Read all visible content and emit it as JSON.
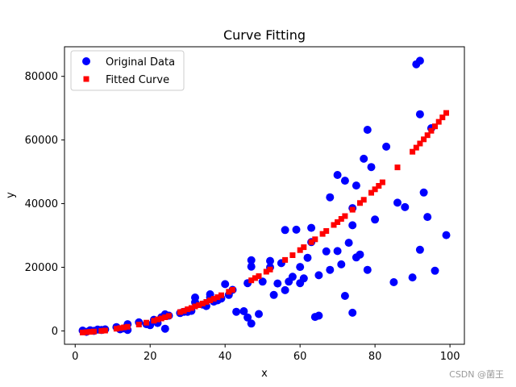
{
  "chart_data": {
    "type": "scatter",
    "title": "Curve Fitting",
    "xlabel": "x",
    "ylabel": "y",
    "xlim": [
      -2.85,
      103.85
    ],
    "ylim": [
      -4200,
      89300
    ],
    "xticks": [
      0,
      20,
      40,
      60,
      80,
      100
    ],
    "yticks": [
      0,
      20000,
      40000,
      60000,
      80000
    ],
    "ytick_labels": [
      "0",
      "20000",
      "40000",
      "60000",
      "80000"
    ],
    "grid": false,
    "legend_position": "top-left",
    "series": [
      {
        "name": "Original Data",
        "marker": "circle",
        "color": "#0000ff",
        "x": [
          2,
          3,
          4,
          5,
          6,
          7,
          8,
          11,
          12,
          13,
          14,
          14,
          17,
          19,
          20,
          21,
          22,
          23,
          24,
          24,
          25,
          28,
          29,
          30,
          31,
          32,
          32,
          34,
          35,
          36,
          36,
          37,
          38,
          39,
          40,
          41,
          42,
          43,
          45,
          46,
          46,
          47,
          47,
          47,
          49,
          50,
          52,
          52,
          53,
          54,
          55,
          56,
          56,
          57,
          58,
          59,
          60,
          60,
          61,
          62,
          63,
          63,
          64,
          65,
          65,
          67,
          68,
          68,
          70,
          70,
          71,
          72,
          72,
          73,
          74,
          74,
          74,
          75,
          75,
          76,
          77,
          78,
          78,
          79,
          80,
          83,
          85,
          86,
          88,
          90,
          91,
          92,
          92,
          92,
          93,
          94,
          95,
          96,
          99
        ],
        "y": [
          100,
          -300,
          200,
          0,
          400,
          300,
          500,
          1200,
          500,
          800,
          300,
          2100,
          2700,
          2100,
          1800,
          3500,
          2500,
          4300,
          5200,
          700,
          4800,
          5600,
          6000,
          6000,
          6300,
          9000,
          10500,
          8300,
          7800,
          10600,
          11500,
          9200,
          9600,
          10200,
          14700,
          11300,
          12900,
          6000,
          6200,
          4200,
          15000,
          2300,
          20200,
          22200,
          5300,
          15500,
          20000,
          22000,
          11300,
          14900,
          21300,
          12800,
          31700,
          15500,
          17000,
          31800,
          15000,
          20100,
          16500,
          23000,
          27900,
          32400,
          4400,
          4800,
          17500,
          25000,
          19200,
          42000,
          49000,
          25100,
          20900,
          11000,
          47200,
          27700,
          33200,
          38600,
          5700,
          23100,
          45700,
          24000,
          54100,
          19200,
          63200,
          51500,
          35000,
          57900,
          15300,
          40300,
          38900,
          16800,
          83800,
          84900,
          68100,
          25500,
          43500,
          35800,
          63700,
          18900,
          30100
        ]
      },
      {
        "name": "Fitted Curve",
        "marker": "square",
        "color": "#ff0000",
        "x": [
          2,
          3,
          4,
          5,
          7,
          8,
          11,
          12,
          13,
          14,
          17,
          19,
          21,
          22,
          23,
          24,
          25,
          28,
          29,
          30,
          31,
          32,
          33,
          34,
          35,
          36,
          37,
          38,
          39,
          41,
          42,
          47,
          48,
          49,
          51,
          52,
          56,
          58,
          60,
          61,
          63,
          64,
          66,
          67,
          69,
          70,
          71,
          72,
          74,
          76,
          77,
          79,
          80,
          81,
          82,
          86,
          90,
          91,
          92,
          93,
          94,
          95,
          96,
          97,
          98,
          99
        ],
        "y": [
          -500,
          -400,
          -300,
          -200,
          0,
          100,
          700,
          900,
          1100,
          1300,
          2000,
          2600,
          3200,
          3600,
          3900,
          4300,
          4700,
          5900,
          6300,
          6800,
          7200,
          7700,
          8100,
          8600,
          9100,
          9600,
          10100,
          10600,
          11200,
          12300,
          12900,
          15900,
          16600,
          17200,
          18600,
          19300,
          22300,
          23800,
          25400,
          26300,
          27900,
          28800,
          30500,
          31400,
          33300,
          34200,
          35200,
          36100,
          38100,
          40200,
          41200,
          43400,
          44500,
          45600,
          46700,
          51400,
          56300,
          57600,
          58900,
          60200,
          61500,
          62900,
          64300,
          65700,
          67100,
          68500
        ]
      }
    ]
  },
  "watermark": "CSDN @菌王"
}
